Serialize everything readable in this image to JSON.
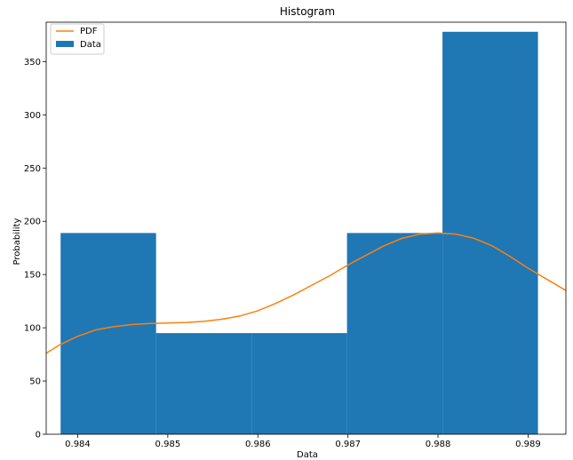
{
  "chart_data": {
    "type": "bar",
    "title": "Histogram",
    "xlabel": "Data",
    "ylabel": "Probability",
    "xlim": [
      0.98365,
      0.98942
    ],
    "ylim": [
      0,
      387
    ],
    "xticks": [
      0.984,
      0.985,
      0.986,
      0.987,
      0.988,
      0.989
    ],
    "xtick_labels": [
      "0.984",
      "0.985",
      "0.986",
      "0.987",
      "0.988",
      "0.989"
    ],
    "yticks": [
      0,
      50,
      100,
      150,
      200,
      250,
      300,
      350
    ],
    "ytick_labels": [
      "0",
      "50",
      "100",
      "150",
      "200",
      "250",
      "300",
      "350"
    ],
    "grid": false,
    "legend_position": "top-left",
    "bins": [
      {
        "start": 0.98381,
        "end": 0.98487,
        "value": 189
      },
      {
        "start": 0.98487,
        "end": 0.98593,
        "value": 95
      },
      {
        "start": 0.98593,
        "end": 0.98699,
        "value": 95
      },
      {
        "start": 0.98699,
        "end": 0.98805,
        "value": 189
      },
      {
        "start": 0.98805,
        "end": 0.98911,
        "value": 378
      }
    ],
    "pdf_curve": {
      "x": [
        0.98365,
        0.9838,
        0.984,
        0.9842,
        0.9844,
        0.9846,
        0.9848,
        0.985,
        0.9852,
        0.9854,
        0.9856,
        0.9858,
        0.986,
        0.9862,
        0.9864,
        0.9866,
        0.9868,
        0.987,
        0.9872,
        0.9874,
        0.9876,
        0.9878,
        0.988,
        0.9882,
        0.9884,
        0.9886,
        0.9888,
        0.989,
        0.9892,
        0.98942
      ],
      "y": [
        76,
        84,
        92,
        98,
        101,
        103,
        104,
        104.5,
        105,
        106,
        108,
        111,
        116,
        123,
        131,
        140,
        149,
        159,
        168,
        177,
        184,
        188,
        189,
        188,
        184,
        177,
        167,
        156,
        146,
        135
      ]
    },
    "series": [
      {
        "name": "PDF",
        "kind": "line",
        "color": "#ff7f0e"
      },
      {
        "name": "Data",
        "kind": "bar",
        "color": "#1f77b4"
      }
    ]
  }
}
